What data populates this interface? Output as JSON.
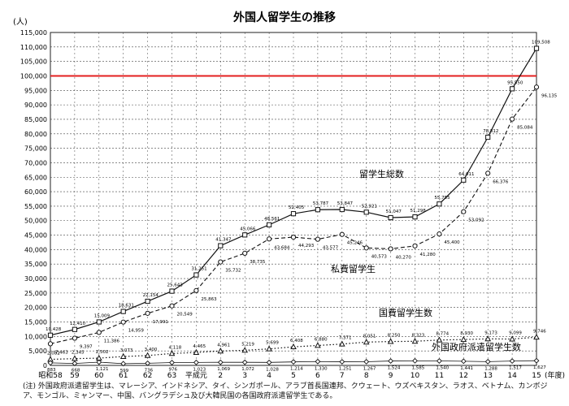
{
  "chart_data": {
    "type": "line",
    "title": "外国人留学生の推移",
    "y_unit": "(人)",
    "x_unit": "(年度)",
    "categories": [
      "昭和58",
      "59",
      "60",
      "61",
      "62",
      "63",
      "平成元",
      "2",
      "3",
      "4",
      "5",
      "6",
      "7",
      "8",
      "9",
      "10",
      "11",
      "12",
      "13",
      "14",
      "15"
    ],
    "ylim": [
      0,
      115000
    ],
    "ytick_labels": [
      "0",
      "5,000",
      "10,000",
      "15,000",
      "20,000",
      "25,000",
      "30,000",
      "35,000",
      "40,000",
      "45,000",
      "50,000",
      "55,000",
      "60,000",
      "65,000",
      "70,000",
      "75,000",
      "80,000",
      "85,000",
      "90,000",
      "95,000",
      "100,000",
      "105,000",
      "110,000",
      "115,000"
    ],
    "grid": true,
    "reference_line": {
      "value": 100000,
      "color": "#e32020"
    },
    "series": [
      {
        "name": "留学生総数",
        "marker": "square",
        "style": "solid",
        "values": [
          10428,
          12410,
          15009,
          18631,
          22154,
          25643,
          31251,
          41347,
          45066,
          48561,
          52405,
          53787,
          53847,
          52921,
          51047,
          51298,
          55755,
          64011,
          78812,
          95550,
          109508
        ],
        "labels": [
          "10,428",
          "12,410",
          "15,009",
          "18,631",
          "22,154",
          "25,643",
          "31,251",
          "41,347",
          "45,066",
          "48,561",
          "52,405",
          "53,787",
          "53,847",
          "52,921",
          "51,047",
          "51,298",
          "55,755",
          "64,011",
          "78,812",
          "95,550",
          "109,508"
        ]
      },
      {
        "name": "私費留学生",
        "marker": "circle",
        "style": "dashed",
        "values": [
          7463,
          9397,
          11386,
          14959,
          17991,
          20549,
          25863,
          35732,
          38735,
          43684,
          44293,
          43577,
          45246,
          40573,
          40270,
          41280,
          45400,
          53092,
          66376,
          85084,
          96135
        ],
        "labels": [
          "7,463",
          "9,397",
          "11,386",
          "14,959",
          "17,991",
          "20,549",
          "25,863",
          "35,732",
          "38,735",
          "43,684",
          "44,293",
          "43,577",
          "45,246",
          "40,573",
          "40,270",
          "41,280",
          "45,400",
          "53,092",
          "66,376",
          "85,084",
          "96,135"
        ]
      },
      {
        "name": "国費留学生数",
        "marker": "triangle",
        "style": "dotted",
        "values": [
          2082,
          2345,
          2502,
          3073,
          3400,
          4118,
          4465,
          4961,
          5219,
          5699,
          6408,
          6880,
          7371,
          8051,
          8250,
          8323,
          8774,
          8930,
          9173,
          9099,
          9746
        ],
        "labels": [
          "2,082",
          "2,345",
          "2,502",
          "3,073",
          "3,400",
          "4,118",
          "4,465",
          "4,961",
          "5,219",
          "5,699",
          "6,408",
          "6,880",
          "7,371",
          "8,051",
          "8,250",
          "8,323",
          "8,774",
          "8,930",
          "9,173",
          "9,099",
          "9,746"
        ]
      },
      {
        "name": "外国政府派遣留学生数",
        "marker": "diamond",
        "style": "solid-thin",
        "values": [
          883,
          668,
          1121,
          599,
          736,
          976,
          1023,
          1069,
          1072,
          1028,
          1214,
          1330,
          1251,
          1267,
          1524,
          1585,
          1540,
          1441,
          1288,
          1517,
          1627
        ],
        "labels": [
          "883",
          "668",
          "1,121",
          "599",
          "736",
          "976",
          "1,023",
          "1,069",
          "1,072",
          "1,028",
          "1,214",
          "1,330",
          "1,251",
          "1,267",
          "1,524",
          "1,585",
          "1,540",
          "1,441",
          "1,288",
          "1,517",
          "1,627"
        ]
      }
    ],
    "annotations": [
      "留学生総数",
      "私費留学生",
      "国費留学生数",
      "外国政府派遣留学生数"
    ],
    "footnote": "(注) 外国政府派遣留学生は、マレーシア、インドネシア、タイ、シンガポール、アラブ首長国連邦、クウェート、ウズベキスタン、ラオス、ベトナム、カンボジア、モンゴル、ミャンマー、中国、バングラデシュ及び大韓民国の各国政府派遣留学生である。"
  },
  "colors": {
    "line": "#111111",
    "grid": "#444444",
    "reference": "#e32020",
    "background": "#ffffff"
  }
}
